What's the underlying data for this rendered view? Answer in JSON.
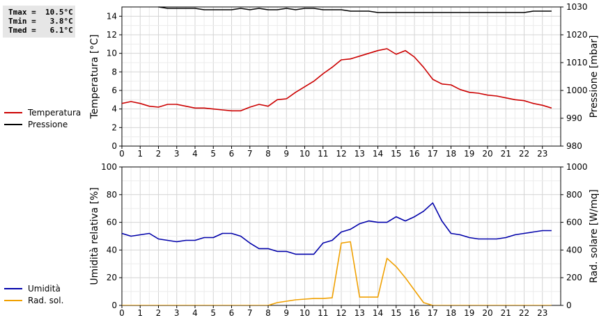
{
  "stats": {
    "tmax": "Tmax =  10.5°C",
    "tmin": "Tmin =   3.8°C",
    "tmed": "Tmed =   6.1°C"
  },
  "legend_top": [
    {
      "label": "Temperatura",
      "color": "#cc0000"
    },
    {
      "label": "Pressione",
      "color": "#000000"
    }
  ],
  "legend_bottom": [
    {
      "label": "Umidità",
      "color": "#0000aa"
    },
    {
      "label": "Rad. sol.",
      "color": "#f0a000"
    }
  ],
  "chart_data": [
    {
      "type": "line",
      "xlim": [
        0,
        24
      ],
      "x_ticks": [
        0,
        1,
        2,
        3,
        4,
        5,
        6,
        7,
        8,
        9,
        10,
        11,
        12,
        13,
        14,
        15,
        16,
        17,
        18,
        19,
        20,
        21,
        22,
        23
      ],
      "grid": true,
      "ylabel_left": "Temperatura [°C]",
      "ylim_left": [
        0,
        15
      ],
      "yticks_left": [
        0,
        2,
        4,
        6,
        8,
        10,
        12,
        14
      ],
      "ylabel_right": "Pressione [mbar]",
      "ylim_right": [
        980,
        1030
      ],
      "yticks_right": [
        980,
        990,
        1000,
        1010,
        1020,
        1030
      ],
      "series": [
        {
          "name": "Temperatura",
          "axis": "left",
          "color": "#cc0000",
          "x": [
            0,
            0.5,
            1,
            1.5,
            2,
            2.5,
            3,
            3.5,
            4,
            4.5,
            5,
            5.5,
            6,
            6.5,
            7,
            7.5,
            8,
            8.5,
            9,
            9.5,
            10,
            10.5,
            11,
            11.5,
            12,
            12.5,
            13,
            13.5,
            14,
            14.5,
            15,
            15.5,
            16,
            16.5,
            17,
            17.5,
            18,
            18.5,
            19,
            19.5,
            20,
            20.5,
            21,
            21.5,
            22,
            22.5,
            23,
            23.5
          ],
          "y": [
            4.6,
            4.8,
            4.6,
            4.3,
            4.2,
            4.5,
            4.5,
            4.3,
            4.1,
            4.1,
            4.0,
            3.9,
            3.8,
            3.8,
            4.2,
            4.5,
            4.3,
            5.0,
            5.1,
            5.8,
            6.4,
            7.0,
            7.8,
            8.5,
            9.3,
            9.4,
            9.7,
            10.0,
            10.3,
            10.5,
            9.9,
            10.3,
            9.6,
            8.5,
            7.2,
            6.7,
            6.6,
            6.1,
            5.8,
            5.7,
            5.5,
            5.4,
            5.2,
            5.0,
            4.9,
            4.6,
            4.4,
            4.1
          ]
        },
        {
          "name": "Pressione",
          "axis": "right",
          "color": "#000000",
          "x": [
            2,
            2.5,
            3,
            3.5,
            4,
            4.5,
            5,
            5.5,
            6,
            6.5,
            7,
            7.5,
            8,
            8.5,
            9,
            9.5,
            10,
            10.5,
            11,
            11.5,
            12,
            12.5,
            13,
            13.5,
            14,
            14.5,
            15,
            15.5,
            16,
            16.5,
            17,
            17.5,
            18,
            18.5,
            19,
            19.5,
            20,
            20.5,
            21,
            21.5,
            22,
            22.5,
            23,
            23.5
          ],
          "y": [
            1030,
            1029.5,
            1029.5,
            1029.5,
            1029.5,
            1029,
            1029,
            1029,
            1029,
            1029.5,
            1029,
            1029.5,
            1029,
            1029,
            1029.5,
            1029,
            1029.5,
            1029.5,
            1029,
            1029,
            1029,
            1028.5,
            1028.5,
            1028.5,
            1028,
            1028,
            1028,
            1028,
            1028,
            1028,
            1028,
            1028,
            1028,
            1028,
            1028,
            1028,
            1028,
            1028,
            1028,
            1028,
            1028,
            1028.5,
            1028.5,
            1028.5
          ]
        }
      ]
    },
    {
      "type": "line",
      "xlim": [
        0,
        24
      ],
      "x_ticks": [
        0,
        1,
        2,
        3,
        4,
        5,
        6,
        7,
        8,
        9,
        10,
        11,
        12,
        13,
        14,
        15,
        16,
        17,
        18,
        19,
        20,
        21,
        22,
        23
      ],
      "grid": true,
      "ylabel_left": "Umidità relativa [%]",
      "ylim_left": [
        0,
        100
      ],
      "yticks_left": [
        0,
        20,
        40,
        60,
        80,
        100
      ],
      "ylabel_right": "Rad. solare [W/mq]",
      "ylim_right": [
        0,
        1000
      ],
      "yticks_right": [
        0,
        200,
        400,
        600,
        800,
        1000
      ],
      "series": [
        {
          "name": "Umidità",
          "axis": "left",
          "color": "#0000aa",
          "x": [
            0,
            0.5,
            1,
            1.5,
            2,
            2.5,
            3,
            3.5,
            4,
            4.5,
            5,
            5.5,
            6,
            6.5,
            7,
            7.5,
            8,
            8.5,
            9,
            9.5,
            10,
            10.5,
            11,
            11.5,
            12,
            12.5,
            13,
            13.5,
            14,
            14.5,
            15,
            15.5,
            16,
            16.5,
            17,
            17.5,
            18,
            18.5,
            19,
            19.5,
            20,
            20.5,
            21,
            21.5,
            22,
            22.5,
            23,
            23.5
          ],
          "y": [
            52,
            50,
            51,
            52,
            48,
            47,
            46,
            47,
            47,
            49,
            49,
            52,
            52,
            50,
            45,
            41,
            41,
            39,
            39,
            37,
            37,
            37,
            45,
            47,
            53,
            55,
            59,
            61,
            60,
            60,
            64,
            61,
            64,
            68,
            74,
            61,
            52,
            51,
            49,
            48,
            48,
            48,
            49,
            51,
            52,
            53,
            54,
            54
          ]
        },
        {
          "name": "Rad. sol.",
          "axis": "right",
          "color": "#f0a000",
          "x": [
            0,
            0.5,
            1,
            1.5,
            2,
            2.5,
            3,
            3.5,
            4,
            4.5,
            5,
            5.5,
            6,
            6.5,
            7,
            7.5,
            8,
            8.5,
            9,
            9.5,
            10,
            10.5,
            11,
            11.5,
            12,
            12.5,
            13,
            13.5,
            14,
            14.5,
            15,
            15.5,
            16,
            16.5,
            17,
            17.5,
            18,
            18.5,
            19,
            19.5,
            20,
            20.5,
            21,
            21.5,
            22,
            22.5,
            23,
            23.5
          ],
          "y": [
            0,
            0,
            0,
            0,
            0,
            0,
            0,
            0,
            0,
            0,
            0,
            0,
            0,
            0,
            0,
            0,
            0,
            20,
            30,
            40,
            45,
            50,
            50,
            55,
            450,
            460,
            60,
            60,
            60,
            340,
            280,
            200,
            110,
            20,
            0,
            0,
            0,
            0,
            0,
            0,
            0,
            0,
            0,
            0,
            0,
            0,
            0,
            0
          ]
        }
      ]
    }
  ]
}
